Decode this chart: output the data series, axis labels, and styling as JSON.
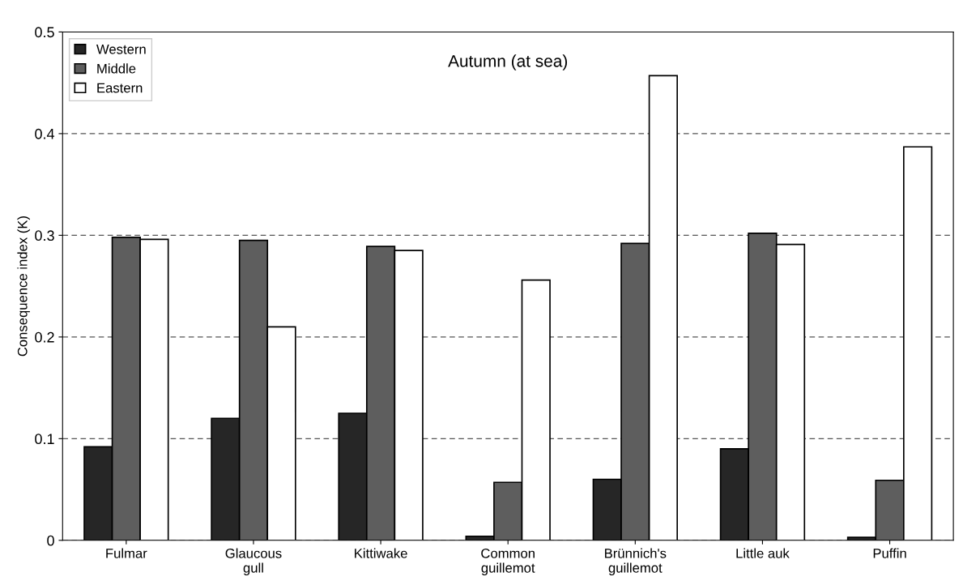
{
  "chart_data": {
    "type": "bar",
    "title": "Autumn (at sea)",
    "ylabel": "Consequence index (K)",
    "categories": [
      "Fulmar",
      "Glaucous\ngull",
      "Kittiwake",
      "Common\nguillemot",
      "Brünnich's\nguillemot",
      "Little auk",
      "Puffin"
    ],
    "series": [
      {
        "name": "Western",
        "color": "#262626",
        "values": [
          0.092,
          0.12,
          0.125,
          0.004,
          0.06,
          0.09,
          0.003
        ]
      },
      {
        "name": "Middle",
        "color": "#5e5e5e",
        "values": [
          0.298,
          0.295,
          0.289,
          0.057,
          0.292,
          0.302,
          0.059
        ]
      },
      {
        "name": "Eastern",
        "color": "#ffffff",
        "values": [
          0.296,
          0.21,
          0.285,
          0.256,
          0.457,
          0.291,
          0.387
        ]
      }
    ],
    "ylim": [
      0,
      0.5
    ],
    "yticks": [
      0,
      0.1,
      0.2,
      0.3,
      0.4,
      0.5
    ],
    "grid": "y",
    "legend": "top left"
  }
}
